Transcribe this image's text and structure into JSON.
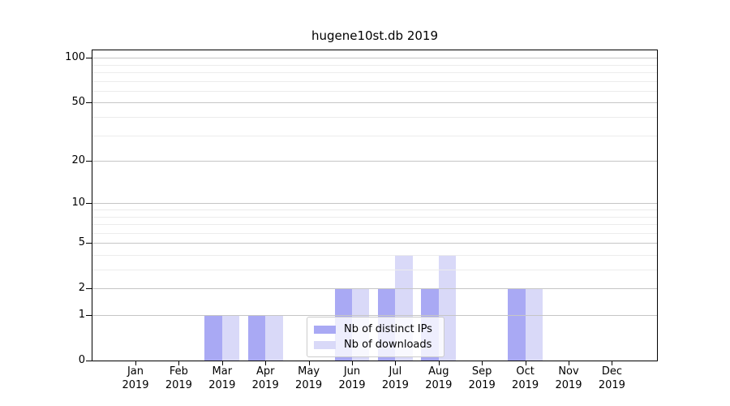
{
  "chart_data": {
    "type": "bar",
    "title": "hugene10st.db 2019",
    "categories": [
      "Jan",
      "Feb",
      "Mar",
      "Apr",
      "May",
      "Jun",
      "Jul",
      "Aug",
      "Sep",
      "Oct",
      "Nov",
      "Dec"
    ],
    "year_label": "2019",
    "series": [
      {
        "name": "Nb of distinct IPs",
        "color": "#a9a9f4",
        "values": [
          0,
          0,
          1,
          1,
          0,
          2,
          2,
          2,
          0,
          2,
          0,
          0
        ]
      },
      {
        "name": "Nb of downloads",
        "color": "#d9d9f8",
        "values": [
          0,
          0,
          1,
          1,
          0,
          2,
          4,
          4,
          0,
          2,
          0,
          0
        ]
      }
    ],
    "yscale": "log1p",
    "yticks": [
      0,
      1,
      2,
      5,
      10,
      20,
      50,
      100
    ],
    "minor_yticks": [
      3,
      4,
      6,
      7,
      8,
      9,
      30,
      40,
      60,
      70,
      80,
      90
    ],
    "ylim": [
      0,
      112
    ],
    "grid": true,
    "legend_position": "lower center"
  },
  "colors": {
    "major_grid": "#c6c6c6",
    "minor_grid": "#ececec",
    "spine": "#000000",
    "legend_border": "#cccccc"
  }
}
